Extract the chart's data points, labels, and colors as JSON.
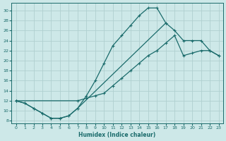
{
  "xlabel": "Humidex (Indice chaleur)",
  "bg_color": "#cde8e8",
  "grid_color": "#b0d0d0",
  "line_color": "#1a6b6b",
  "xlim": [
    -0.5,
    23.5
  ],
  "ylim": [
    7.5,
    31.5
  ],
  "xticks": [
    0,
    1,
    2,
    3,
    4,
    5,
    6,
    7,
    8,
    9,
    10,
    11,
    12,
    13,
    14,
    15,
    16,
    17,
    18,
    19,
    20,
    21,
    22,
    23
  ],
  "yticks": [
    8,
    10,
    12,
    14,
    16,
    18,
    20,
    22,
    24,
    26,
    28,
    30
  ],
  "curve1_x": [
    0,
    1,
    2,
    3,
    4,
    5,
    6,
    7,
    8,
    9,
    10,
    11,
    12,
    13,
    14,
    15,
    16,
    17
  ],
  "curve1_y": [
    12,
    11.5,
    10.5,
    9.5,
    8.5,
    8.5,
    9,
    10.5,
    13,
    16,
    19.5,
    23,
    25,
    27,
    29,
    30.5,
    30.5,
    27.5
  ],
  "curve2_x": [
    0,
    1,
    2,
    3,
    4,
    5,
    6,
    7,
    17,
    18,
    19,
    20,
    21,
    22,
    23
  ],
  "curve2_y": [
    12,
    11.5,
    10.5,
    9.5,
    8.5,
    8.5,
    9,
    10.5,
    27.5,
    26,
    24,
    24,
    24,
    22,
    21
  ],
  "curve3_x": [
    0,
    7,
    8,
    9,
    10,
    11,
    12,
    13,
    14,
    15,
    16,
    17,
    18,
    19,
    20,
    21,
    22,
    23
  ],
  "curve3_y": [
    12,
    12,
    12.5,
    13,
    13.5,
    15,
    16.5,
    18,
    19.5,
    21,
    22,
    23.5,
    25,
    21,
    21.5,
    22,
    22,
    21
  ]
}
